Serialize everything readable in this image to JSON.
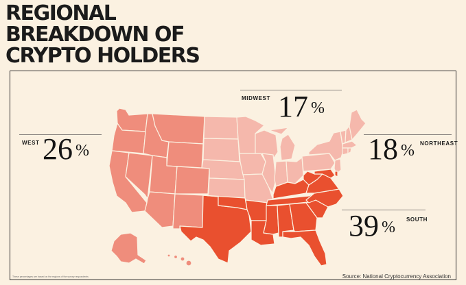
{
  "title_lines": [
    "REGIONAL",
    "BREAKDOWN OF",
    "CRYPTO HOLDERS"
  ],
  "regions": {
    "midwest": {
      "label": "MIDWEST",
      "value": "17",
      "unit": "%",
      "color": "#f5b8ac"
    },
    "west": {
      "label": "WEST",
      "value": "26",
      "unit": "%",
      "color": "#ef8d7c"
    },
    "northeast": {
      "label": "NORTHEAST",
      "value": "18",
      "unit": "%",
      "color": "#f5b8ac"
    },
    "south": {
      "label": "SOUTH",
      "value": "39",
      "unit": "%",
      "color": "#e9502f"
    }
  },
  "footnote": "These percentages are based on the regions of the survey respondents",
  "source": "Source: National Cryptocurrency Association",
  "colors": {
    "background": "#fbf1e1",
    "border": "#2a2a2a",
    "state_lines": "#fbf1e1"
  }
}
